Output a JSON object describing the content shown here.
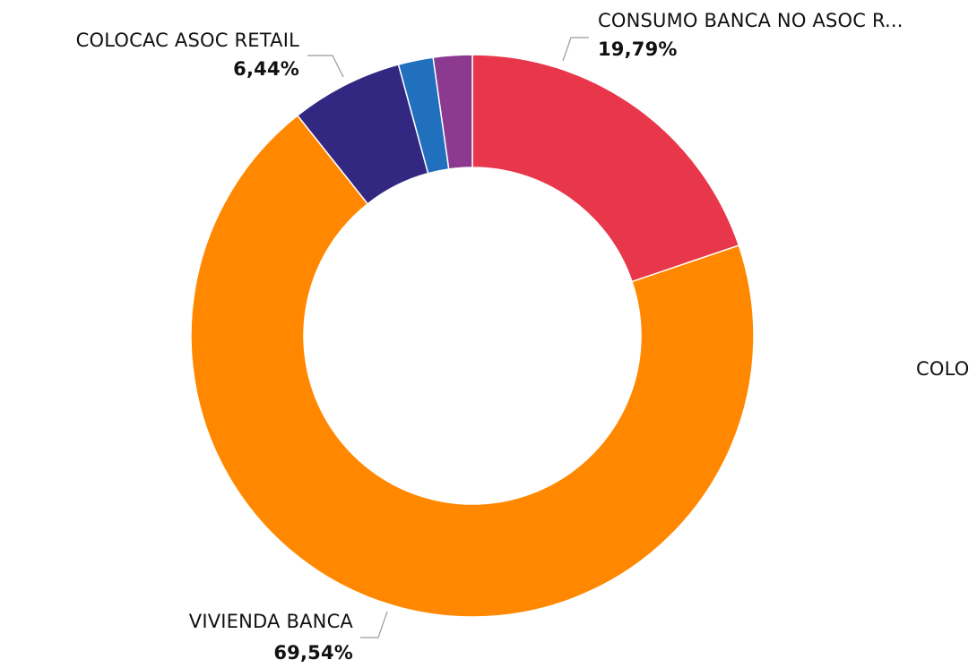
{
  "chart_data": {
    "type": "pie",
    "style": "donut",
    "title": "",
    "series": [
      {
        "values": [
          19.79,
          69.54,
          6.44,
          2.0,
          2.23
        ]
      }
    ],
    "slices": [
      {
        "label": "CONSUMO BANCA NO ASOC R...",
        "value": 19.79,
        "value_label": "19,79%",
        "color": "#E8364A"
      },
      {
        "label": "VIVIENDA BANCA",
        "value": 69.54,
        "value_label": "69,54%",
        "color": "#FF8800"
      },
      {
        "label": "COLOCAC ASOC RETAIL",
        "value": 6.44,
        "value_label": "6,44%",
        "color": "#332881"
      },
      {
        "label": "",
        "value": 2.0,
        "value_label": "",
        "color": "#2170BD"
      },
      {
        "label": "",
        "value": 2.23,
        "value_label": "",
        "color": "#8B3A8F"
      }
    ],
    "cut_off_label": "COLO",
    "legend": "none"
  }
}
